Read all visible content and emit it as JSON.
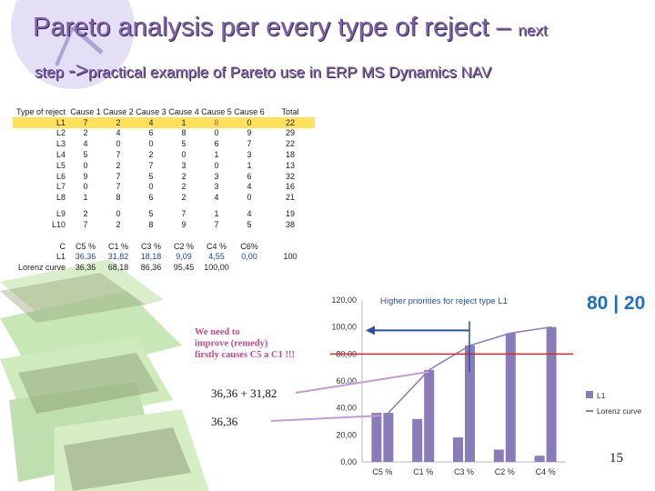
{
  "title": {
    "main": "Pareto analysis per every type of reject –",
    "main_small": "next",
    "step": "step",
    "arrow": "->",
    "sub": "practical example of Pareto use in ERP MS Dynamics NAV"
  },
  "table": {
    "header": [
      "Type of reject",
      "Cause 1",
      "Cause 2",
      "Cause 3",
      "Cause 4",
      "Cause 5",
      "Cause 6",
      "Total"
    ],
    "rows": [
      [
        "L1",
        "7",
        "2",
        "4",
        "1",
        "8",
        "0",
        "22"
      ],
      [
        "L2",
        "2",
        "4",
        "6",
        "8",
        "0",
        "9",
        "29"
      ],
      [
        "L3",
        "4",
        "0",
        "0",
        "5",
        "6",
        "7",
        "22"
      ],
      [
        "L4",
        "5",
        "7",
        "2",
        "0",
        "1",
        "3",
        "18"
      ],
      [
        "L5",
        "0",
        "2",
        "7",
        "3",
        "0",
        "1",
        "13"
      ],
      [
        "L6",
        "9",
        "7",
        "5",
        "2",
        "3",
        "6",
        "32"
      ],
      [
        "L7",
        "0",
        "7",
        "0",
        "2",
        "3",
        "4",
        "16"
      ],
      [
        "L8",
        "1",
        "8",
        "6",
        "2",
        "4",
        "0",
        "21"
      ],
      [
        "L9",
        "2",
        "0",
        "5",
        "7",
        "1",
        "4",
        "19"
      ],
      [
        "L10",
        "7",
        "2",
        "8",
        "9",
        "7",
        "5",
        "38"
      ]
    ],
    "pareto_header": [
      "C",
      "C5 %",
      "C1 %",
      "C3 %",
      "C2 %",
      "C4 %",
      "C6%"
    ],
    "pareto_l1": [
      "L1",
      "36,36",
      "31,82",
      "18,18",
      "9,09",
      "4,55",
      "0,00",
      "100"
    ],
    "pareto_lorenz": [
      "Lorenz curve",
      "36,36",
      "68,18",
      "86,36",
      "95,45",
      "100,00"
    ]
  },
  "logo": "80 | 20",
  "page_number": "15",
  "colors": {
    "title": "#7d62a8",
    "bar": "#8a7cb8",
    "line": "#8a7cb8",
    "threshold": "#d9262c",
    "arrow": "#2a4fa8",
    "callout": "#c44a8c",
    "highlight": "#ffe15a",
    "connector": "#c49ad8"
  },
  "chart_data": {
    "type": "bar",
    "categories": [
      "C5 %",
      "C1 %",
      "C3 %",
      "C2 %",
      "C4 %"
    ],
    "series": [
      {
        "name": "L1",
        "type": "bar",
        "values": [
          36.36,
          31.82,
          18.18,
          9.09,
          4.55
        ]
      },
      {
        "name": "Lorenz curve",
        "type": "bar+line",
        "values": [
          36.36,
          68.18,
          86.36,
          95.45,
          100.0
        ]
      }
    ],
    "ylim": [
      0,
      120
    ],
    "yticks": [
      "0,00",
      "20,00",
      "40,00",
      "60,00",
      "80,00",
      "100,00",
      "120,00"
    ],
    "threshold": 80,
    "legend": "right",
    "annotations": {
      "priority": "Higher priorities for reject type L1",
      "improve": "We need to improve (remedy) firstly causes C5 a C1 !!!",
      "sum": "36,36 + 31,82",
      "single": "36,36"
    }
  }
}
